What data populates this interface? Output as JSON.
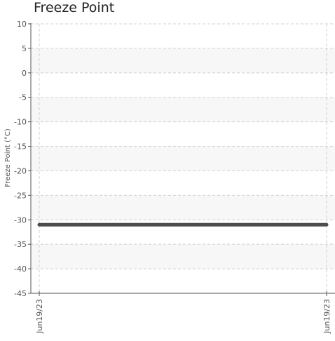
{
  "chart_data": {
    "type": "line",
    "title": "Freeze Point",
    "xlabel": "",
    "ylabel": "Freeze Point (°C)",
    "x": [
      "Jun19/23",
      "Jun19/23"
    ],
    "series": [
      {
        "values": [
          -31,
          -31
        ],
        "color": "#4d4d4d"
      }
    ],
    "ylim": [
      -45,
      10
    ],
    "yticks": [
      10,
      5,
      0,
      -5,
      -10,
      -15,
      -20,
      -25,
      -30,
      -35,
      -40,
      -45
    ],
    "grid": true,
    "alternating_bands": true,
    "legend": "none"
  }
}
